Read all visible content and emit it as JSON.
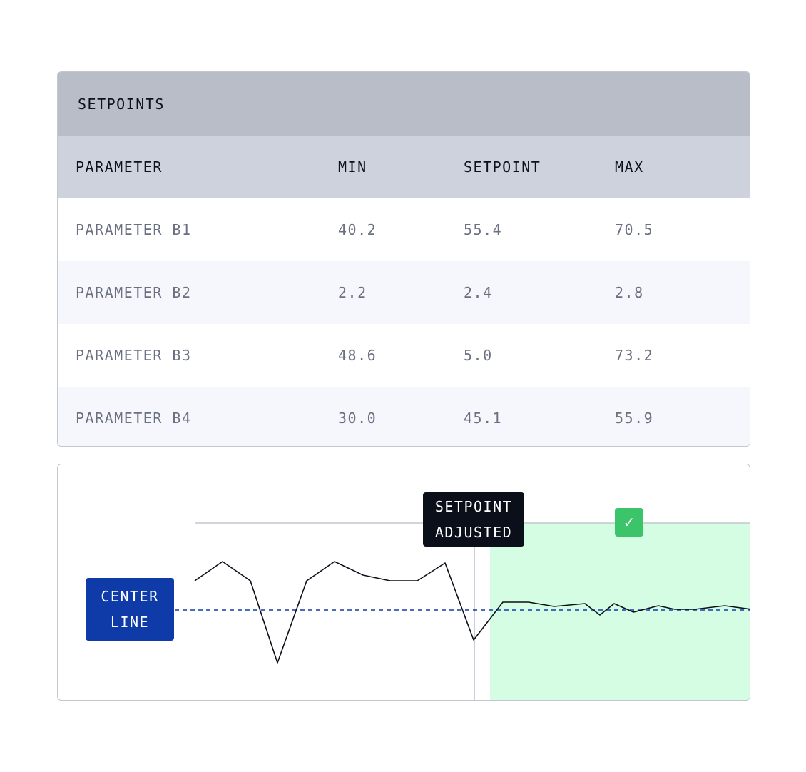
{
  "table": {
    "title": "SETPOINTS",
    "columns": [
      "PARAMETER",
      "MIN",
      "SETPOINT",
      "MAX"
    ],
    "rows": [
      [
        "PARAMETER B1",
        "40.2",
        "55.4",
        "70.5"
      ],
      [
        "PARAMETER B2",
        "2.2",
        "2.4",
        "2.8"
      ],
      [
        "PARAMETER B3",
        "48.6",
        "5.0",
        "73.2"
      ],
      [
        "PARAMETER B4",
        "30.0",
        "45.1",
        "55.9"
      ]
    ]
  },
  "chart": {
    "annotation": "SETPOINT ADJUSTED",
    "annotation_lines": [
      "SETPOINT",
      "ADJUSTED"
    ],
    "center_label_lines": [
      "CENTER",
      "LINE"
    ],
    "check_icon": "check-icon",
    "colors": {
      "center_label": "#0f3ba8",
      "in_control_zone": "#d4fde3",
      "check_badge": "#3cc46b",
      "annotation_bg": "#0b0f19"
    }
  }
}
